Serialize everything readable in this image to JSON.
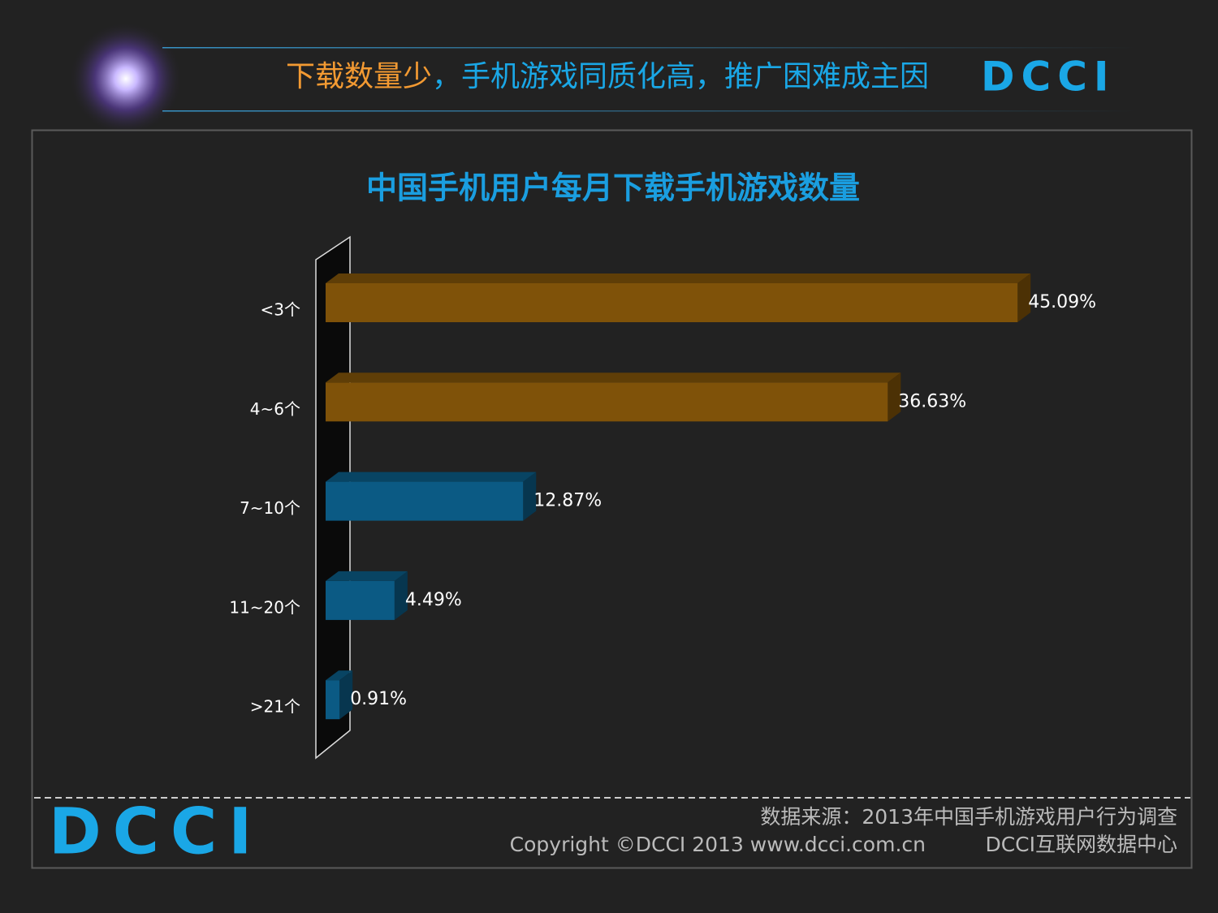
{
  "header": {
    "title_parts": [
      "下载数量少",
      "，手机游戏同质化高，推广困难成主因"
    ],
    "logo": "DCCI"
  },
  "chart_data": {
    "type": "bar",
    "orientation": "horizontal",
    "title": "中国手机用户每月下载手机游戏数量",
    "categories": [
      "<3个",
      "4~6个",
      "7~10个",
      "11~20个",
      ">21个"
    ],
    "values": [
      45.09,
      36.63,
      12.87,
      4.49,
      0.91
    ],
    "value_labels": [
      "45.09%",
      "36.63%",
      "12.87%",
      "4.49%",
      "0.91%"
    ],
    "colors": [
      "#7f5209",
      "#7f5209",
      "#0b5a84",
      "#0b5a84",
      "#0b5a84"
    ]
  },
  "footer": {
    "source": "数据来源：2013年中国手机游戏用户行为调查",
    "copyright": "Copyright ©DCCI 2013 www.dcci.com.cn",
    "org": "DCCI互联网数据中心",
    "logo": "DCCI"
  }
}
